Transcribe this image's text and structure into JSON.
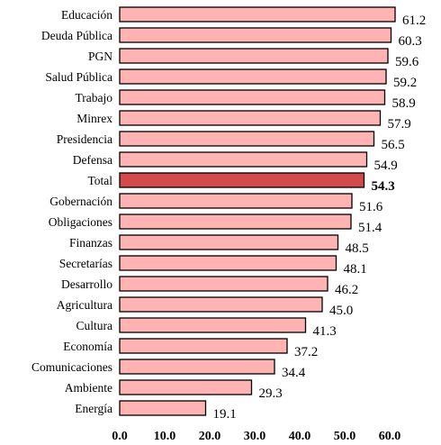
{
  "chart_data": {
    "type": "bar",
    "orientation": "horizontal",
    "title": "",
    "xlabel": "",
    "ylabel": "",
    "xlim": [
      0,
      60
    ],
    "ticks": [
      "0.0",
      "10.0",
      "20.0",
      "30.0",
      "40.0",
      "50.0",
      "60.0"
    ],
    "tick_values": [
      0,
      10,
      20,
      30,
      40,
      50,
      60
    ],
    "grid": false,
    "legend": "none",
    "categories": [
      "Educación",
      "Deuda Pública",
      "PGN",
      "Salud Pública",
      "Trabajo",
      "Minrex",
      "Presidencia",
      "Defensa",
      "Total",
      "Gobernación",
      "Obligaciones",
      "Finanzas",
      "Secretarías",
      "Desarrollo",
      "Agricultura",
      "Cultura",
      "Economía",
      "Comunicaciones",
      "Ambiente",
      "Energía"
    ],
    "values": [
      61.2,
      60.3,
      59.6,
      59.2,
      58.9,
      57.9,
      56.5,
      54.9,
      54.3,
      51.6,
      51.4,
      48.5,
      48.1,
      46.2,
      45.0,
      41.3,
      37.2,
      34.4,
      29.3,
      19.1
    ],
    "value_labels": [
      "61.2",
      "60.3",
      "59.6",
      "59.2",
      "58.9",
      "57.9",
      "56.5",
      "54.9",
      "54.3",
      "51.6",
      "51.4",
      "48.5",
      "48.1",
      "46.2",
      "45.0",
      "41.3",
      "37.2",
      "34.4",
      "29.3",
      "19.1"
    ],
    "highlight_category": "Total",
    "colors": {
      "bar": "#ffb3b3",
      "highlight": "#d24a4a",
      "outline": "#000000"
    }
  }
}
